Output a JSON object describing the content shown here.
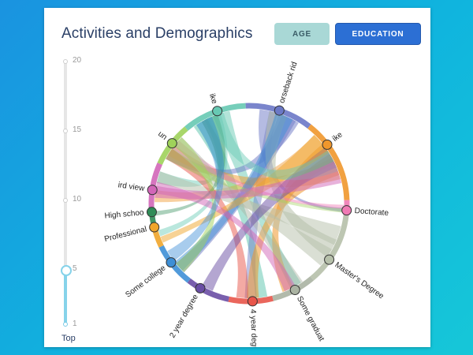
{
  "header": {
    "title": "Activities and Demographics",
    "buttons": {
      "age": "AGE",
      "education": "EDUCATION"
    }
  },
  "slider": {
    "ticks": [
      "20",
      "15",
      "10",
      "5",
      "1"
    ],
    "caption": "Top",
    "selected": 5
  },
  "chart_data": {
    "type": "chord",
    "nodes": [
      {
        "label": "ike",
        "color": "#67c9b3"
      },
      {
        "label": "orseback rid",
        "color": "#6b78c6"
      },
      {
        "label": "ike",
        "color": "#f0972c"
      },
      {
        "label": "Doctorate",
        "color": "#f07ab4"
      },
      {
        "label": "Master's Degree",
        "color": "#b6c0aa"
      },
      {
        "label": "Some graduat",
        "color": "#aab3a2"
      },
      {
        "label": "4 year degre",
        "color": "#e8554a"
      },
      {
        "label": "2 year degree",
        "color": "#6a4ea4"
      },
      {
        "label": "Some college",
        "color": "#3d8fd6"
      },
      {
        "label": "Professional",
        "color": "#f0a52b"
      },
      {
        "label": "High schoo",
        "color": "#2f8c57"
      },
      {
        "label": "ird view",
        "color": "#d266b8"
      },
      {
        "label": "un",
        "color": "#9fd25a"
      }
    ]
  }
}
